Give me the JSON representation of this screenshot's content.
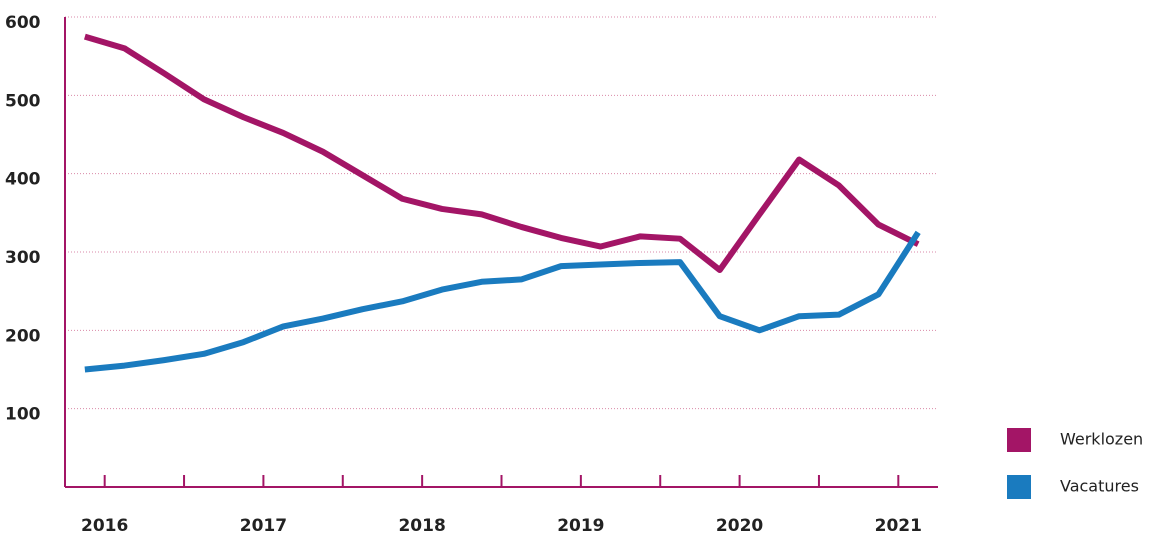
{
  "chart_data": {
    "type": "line",
    "x": [
      2015.875,
      2016.125,
      2016.375,
      2016.625,
      2016.875,
      2017.125,
      2017.375,
      2017.625,
      2017.875,
      2018.125,
      2018.375,
      2018.625,
      2018.875,
      2019.125,
      2019.375,
      2019.625,
      2019.875,
      2020.125,
      2020.375,
      2020.625,
      2020.875,
      2021.125
    ],
    "series": [
      {
        "name": "Werklozen",
        "color": "#a31566",
        "values": [
          575,
          560,
          528,
          495,
          472,
          452,
          428,
          398,
          368,
          355,
          348,
          332,
          318,
          307,
          320,
          317,
          277,
          348,
          418,
          385,
          335,
          310
        ]
      },
      {
        "name": "Vacatures",
        "color": "#1a7bbf",
        "values": [
          150,
          155,
          162,
          170,
          185,
          205,
          215,
          227,
          237,
          252,
          262,
          265,
          282,
          284,
          286,
          287,
          218,
          200,
          218,
          220,
          246,
          325
        ]
      }
    ],
    "xlim": [
      2015.75,
      2021.25
    ],
    "xticks": [
      2016,
      2017,
      2018,
      2019,
      2020,
      2021
    ],
    "xminorticks": [
      2016.5,
      2017.5,
      2018.5,
      2019.5,
      2020.5
    ],
    "ylim": [
      0,
      600
    ],
    "yticks": [
      100,
      200,
      300,
      400,
      500,
      600
    ],
    "grid": true
  }
}
